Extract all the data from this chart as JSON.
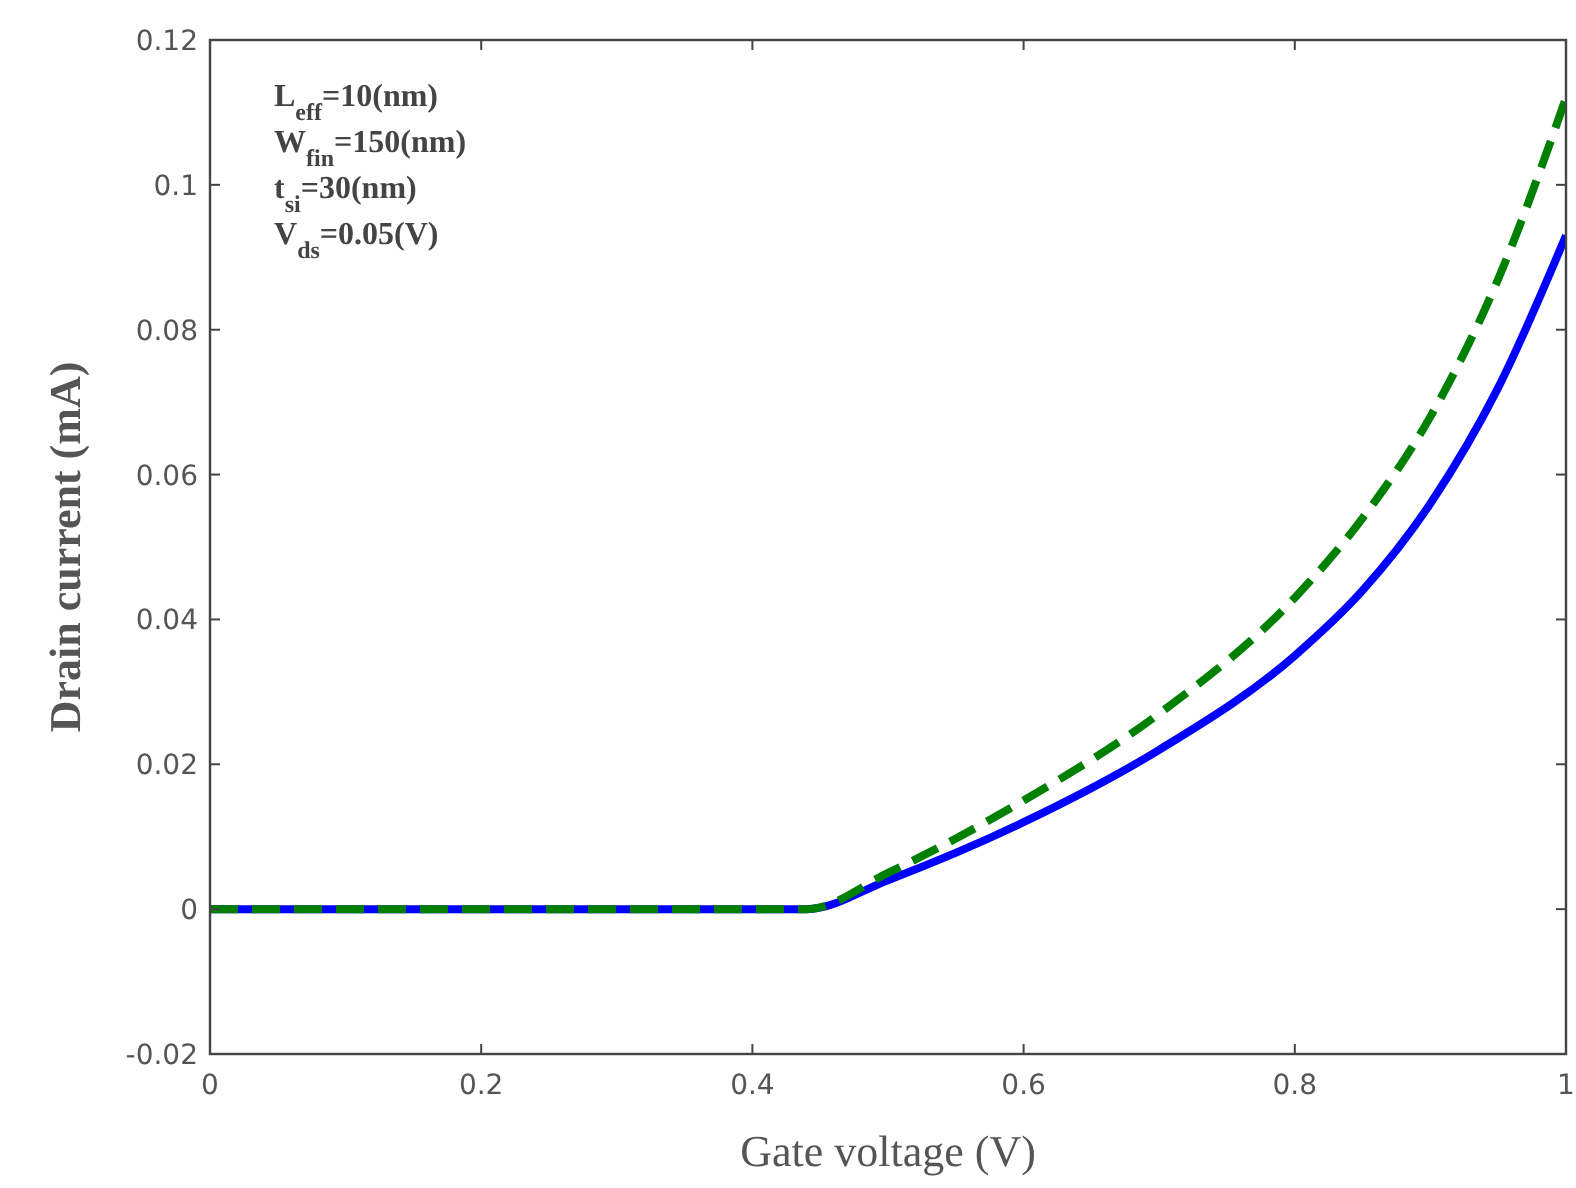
{
  "chart_data": {
    "type": "line",
    "xlabel": "Gate voltage (V)",
    "ylabel": "Drain current (mA)",
    "xlim": [
      0,
      1
    ],
    "ylim": [
      -0.02,
      0.12
    ],
    "xticks": [
      0,
      0.2,
      0.4,
      0.6,
      0.8,
      1
    ],
    "yticks": [
      -0.02,
      0,
      0.02,
      0.04,
      0.06,
      0.08,
      0.1,
      0.12
    ],
    "grid": false,
    "annotations": [
      "L$_{eff}$=10(nm)",
      "W$_{fin}$=150(nm)",
      "t$_{si}$=30(nm)",
      "V$_{ds}$=0.05(V)"
    ],
    "series": [
      {
        "color": "#0000ff",
        "line_style": "solid",
        "x": [
          0,
          0.44,
          0.5,
          0.6,
          0.7,
          0.8,
          0.85,
          0.9,
          0.95,
          1
        ],
        "values": [
          0,
          0,
          0.004,
          0.012,
          0.022,
          0.035,
          0.044,
          0.056,
          0.072,
          0.093
        ]
      },
      {
        "color": "#008000",
        "line_style": "dashed",
        "x": [
          0,
          0.44,
          0.5,
          0.6,
          0.7,
          0.8,
          0.85,
          0.9,
          0.95,
          1
        ],
        "values": [
          0,
          0,
          0.005,
          0.015,
          0.027,
          0.043,
          0.054,
          0.068,
          0.087,
          0.112
        ]
      }
    ]
  }
}
